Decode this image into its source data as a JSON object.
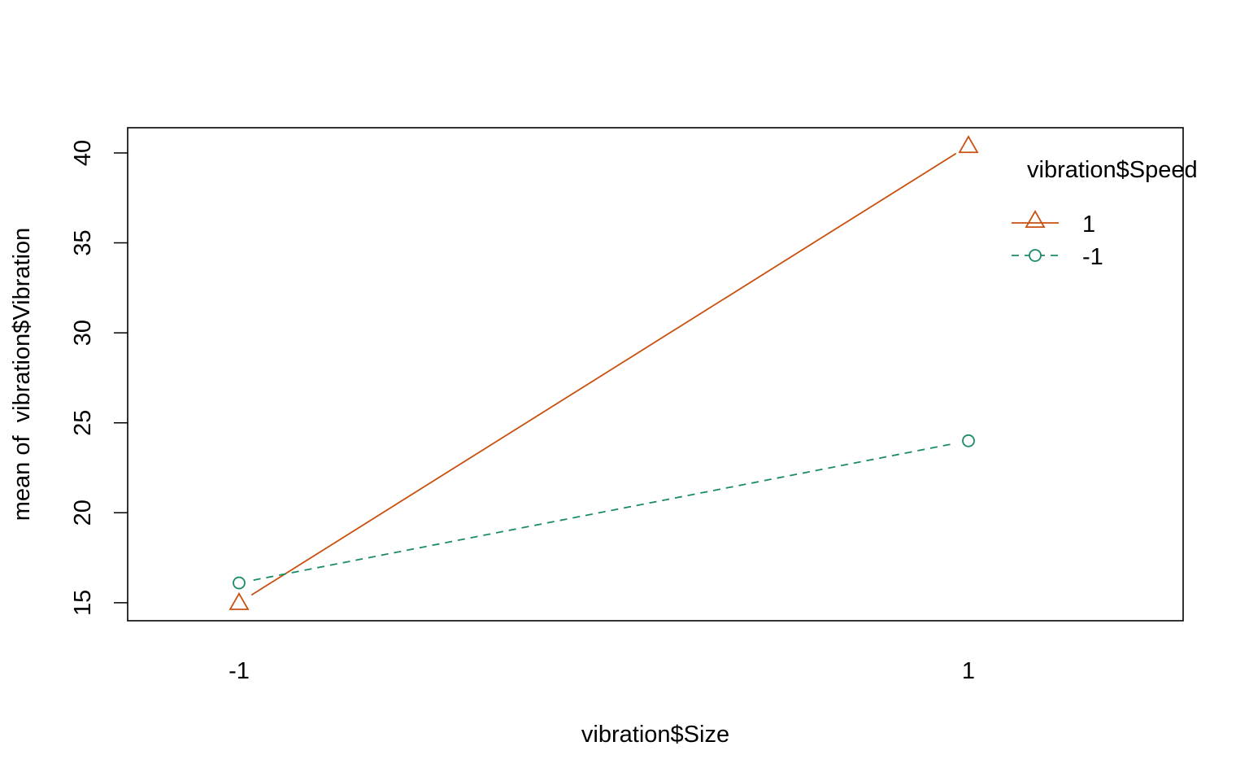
{
  "chart_data": {
    "type": "line",
    "title": "",
    "xlabel": "vibration$Size",
    "ylabel": "mean of  vibration$Vibration",
    "categories": [
      "-1",
      "1"
    ],
    "x_ticks": [
      "-1",
      "1"
    ],
    "y_ticks": [
      15,
      20,
      25,
      30,
      35,
      40
    ],
    "ylim": [
      14,
      41.4
    ],
    "grid": false,
    "legend": {
      "title": "vibration$Speed",
      "position": "top-right",
      "entries": [
        "1",
        "-1"
      ]
    },
    "series": [
      {
        "name": "1",
        "values": [
          15.0,
          40.4
        ],
        "color": "#C9500F",
        "marker": "triangle",
        "linestyle": "solid"
      },
      {
        "name": "-1",
        "values": [
          16.1,
          24.0
        ],
        "color": "#1B8A6B",
        "marker": "circle",
        "linestyle": "dashed"
      }
    ]
  }
}
